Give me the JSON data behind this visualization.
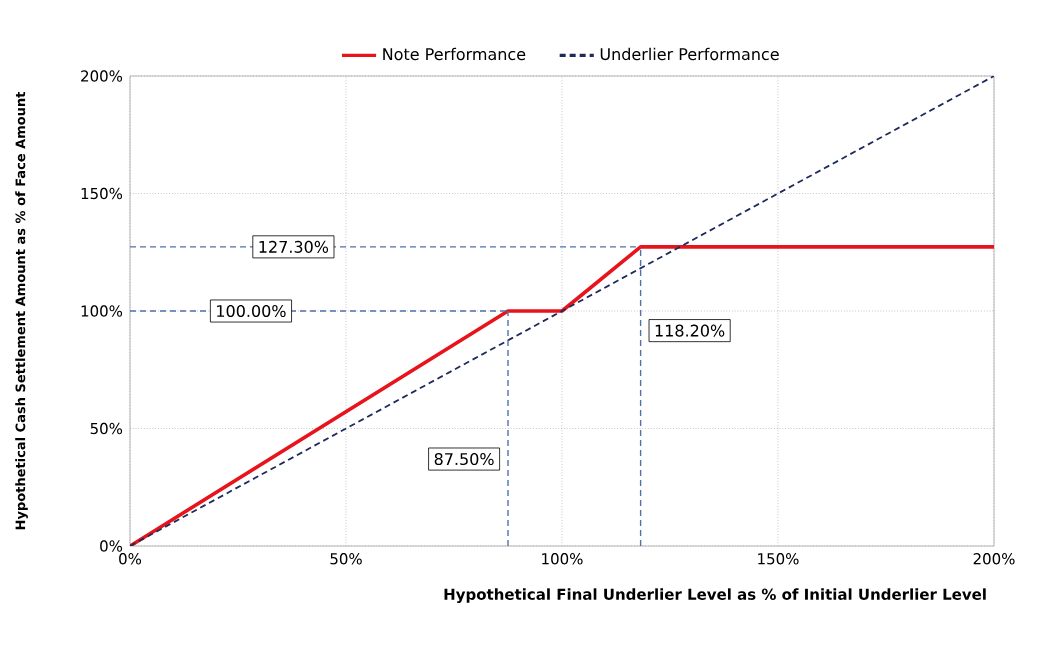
{
  "chart_data": {
    "type": "line",
    "xlabel": "Hypothetical Final Underlier Level as % of Initial Underlier Level",
    "ylabel": "Hypothetical Cash Settlement Amount as % of Face Amount",
    "series": [
      {
        "name": "Note Performance",
        "color": "#e8141c",
        "line_style": "solid",
        "x": [
          0,
          87.5,
          100,
          118.2,
          200
        ],
        "values": [
          0,
          100,
          100,
          127.3,
          127.3
        ]
      },
      {
        "name": "Underlier Performance",
        "color": "#1f2a5c",
        "line_style": "dashed",
        "x": [
          0,
          200
        ],
        "values": [
          0,
          200
        ]
      }
    ],
    "xlim": [
      0,
      200
    ],
    "ylim": [
      0,
      200
    ],
    "xticks": [
      {
        "value": 0,
        "label": "0%"
      },
      {
        "value": 50,
        "label": "50%"
      },
      {
        "value": 100,
        "label": "100%"
      },
      {
        "value": 150,
        "label": "150%"
      },
      {
        "value": 200,
        "label": "200%"
      }
    ],
    "yticks": [
      {
        "value": 0,
        "label": "0%"
      },
      {
        "value": 50,
        "label": "50%"
      },
      {
        "value": 100,
        "label": "100%"
      },
      {
        "value": 150,
        "label": "150%"
      },
      {
        "value": 200,
        "label": "200%"
      }
    ],
    "ref_lines": [
      {
        "axis": "y",
        "value": 127.3,
        "label": "127.30%",
        "color": "#4f73a8",
        "line_style": "dashed"
      },
      {
        "axis": "y",
        "value": 100,
        "label": "100.00%",
        "color": "#4f73a8",
        "line_style": "dashed"
      },
      {
        "axis": "x",
        "value": 87.5,
        "label": "87.50%",
        "color": "#4f73a8",
        "line_style": "dashed"
      },
      {
        "axis": "x",
        "value": 118.2,
        "label": "118.20%",
        "color": "#4f73a8",
        "line_style": "dashed"
      }
    ],
    "grid": true,
    "legend": "top",
    "marker": "none"
  }
}
